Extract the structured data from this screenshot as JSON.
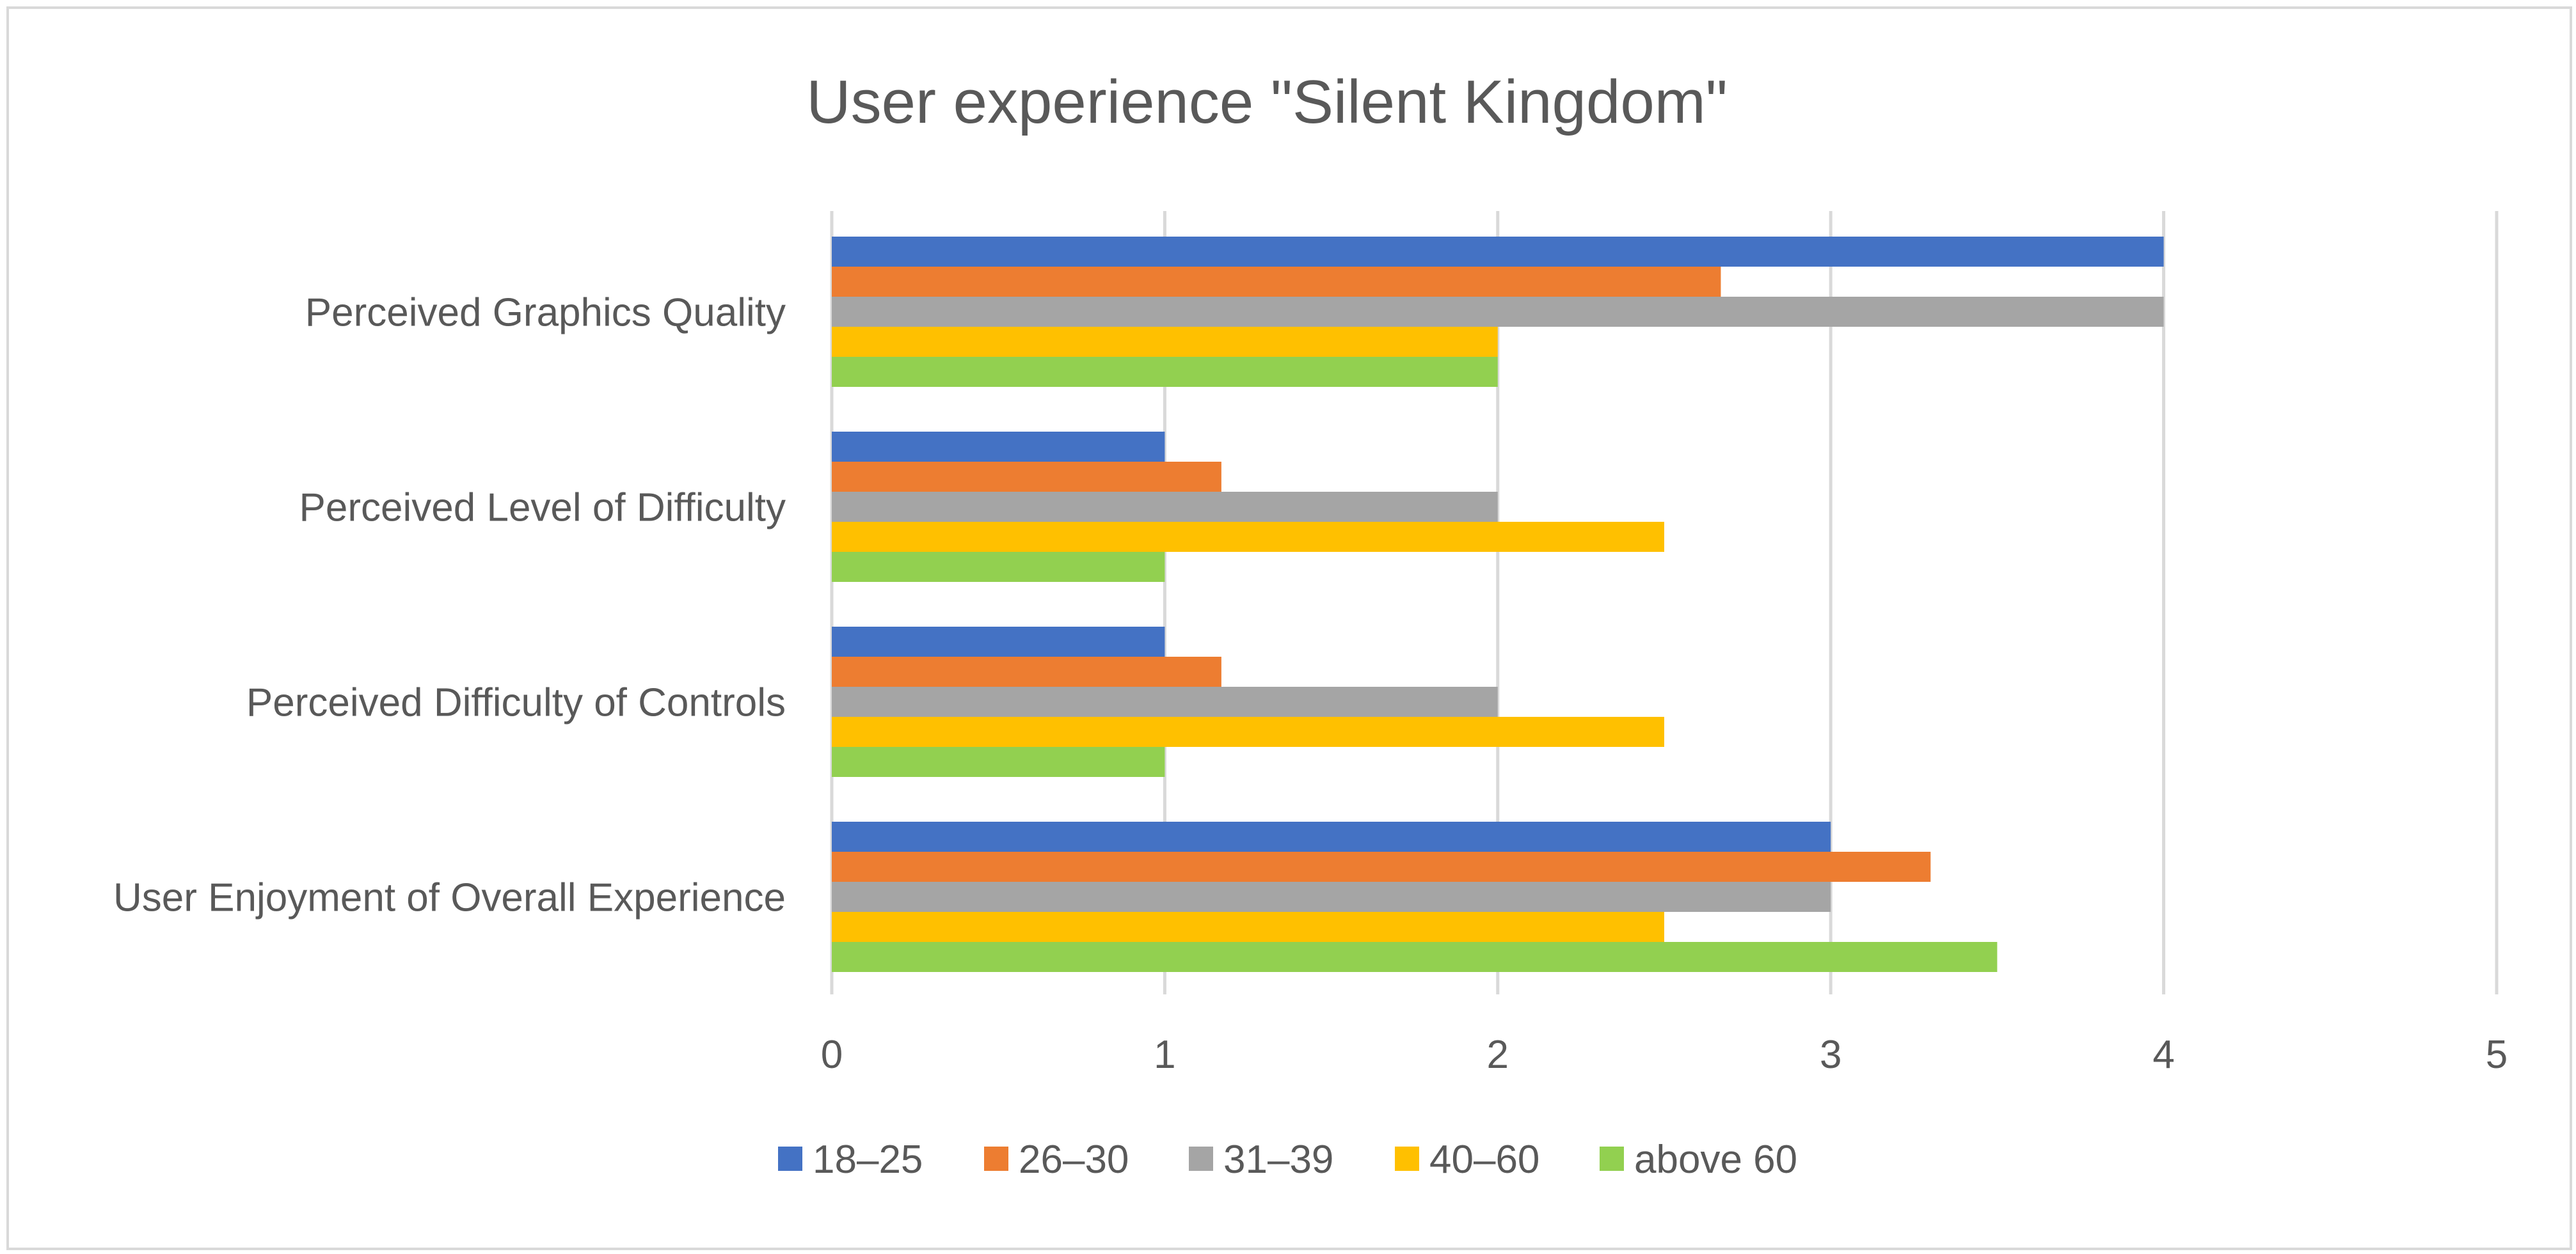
{
  "chart_data": {
    "type": "bar",
    "orientation": "horizontal",
    "title": "User experience \"Silent Kingdom\"",
    "xlabel": "",
    "ylabel": "",
    "xlim": [
      0,
      5
    ],
    "x_ticks": [
      "0",
      "1",
      "2",
      "3",
      "4",
      "5"
    ],
    "grid": true,
    "legend_position": "bottom",
    "categories": [
      "Perceived Graphics Quality",
      "Perceived Level of Difficulty",
      "Perceived Difficulty of Controls",
      "User Enjoyment of Overall Experience"
    ],
    "series": [
      {
        "name": "18–25",
        "color": "#4472C4",
        "values": [
          4,
          1,
          1,
          3
        ]
      },
      {
        "name": "26–30",
        "color": "#ED7D31",
        "values": [
          2.67,
          1.17,
          1.17,
          3.3
        ]
      },
      {
        "name": "31–39",
        "color": "#A5A5A5",
        "values": [
          4,
          2,
          2,
          3
        ]
      },
      {
        "name": "40–60",
        "color": "#FFC000",
        "values": [
          2,
          2.5,
          2.5,
          2.5
        ]
      },
      {
        "name": "above 60",
        "color": "#92D050",
        "values": [
          2,
          1,
          1,
          3.5
        ]
      }
    ]
  }
}
